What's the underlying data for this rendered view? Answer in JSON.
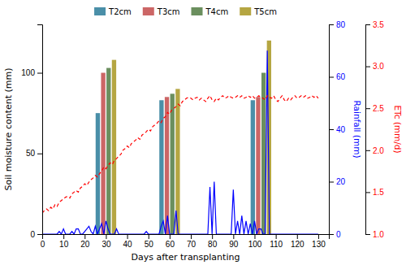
{
  "chart_data": {
    "type": "bar",
    "xlabel": "Days after transplanting",
    "ylabel": "Soil moisture content (mm)",
    "y2label": "Rainfall (mm)",
    "y3label": "ETc (mm/d)",
    "xlim": [
      0,
      135
    ],
    "xticks": [
      0,
      10,
      20,
      30,
      40,
      50,
      60,
      70,
      80,
      90,
      100,
      110,
      120,
      130
    ],
    "ylim": [
      0,
      130
    ],
    "yticks": [
      0,
      50,
      100
    ],
    "y2lim": [
      0,
      80
    ],
    "y2ticks": [
      0,
      20,
      40,
      60,
      80
    ],
    "y3lim": [
      1.0,
      3.5
    ],
    "y3ticks": [
      {
        "value": 1.0,
        "label": "1.0"
      },
      1.5,
      {
        "value": 2.0,
        "label": "2.0"
      },
      2.5,
      {
        "value": 3.0,
        "label": "3.0"
      },
      3.5
    ],
    "grid": false,
    "legend": "top",
    "series": [
      {
        "name": "T2cm",
        "type": "bar",
        "color": "#4a8fa8",
        "x": [
          30,
          60,
          103
        ],
        "values": [
          75,
          83,
          83
        ]
      },
      {
        "name": "T3cm",
        "type": "bar",
        "color": "#cc6666",
        "x": [
          30,
          60,
          103
        ],
        "values": [
          100,
          85,
          85
        ]
      },
      {
        "name": "T4cm",
        "type": "bar",
        "color": "#6b8f5e",
        "x": [
          30,
          60,
          103
        ],
        "values": [
          103,
          87,
          100
        ]
      },
      {
        "name": "T5cm",
        "type": "bar",
        "color": "#b5a642",
        "x": [
          30,
          60,
          103
        ],
        "values": [
          108,
          90,
          120
        ]
      },
      {
        "type": "line",
        "axis": "y2",
        "color": "blue",
        "line_style": "solid",
        "x": [
          0,
          1,
          2,
          3,
          4,
          5,
          6,
          7,
          8,
          9,
          10,
          11,
          12,
          13,
          14,
          15,
          16,
          17,
          18,
          19,
          20,
          21,
          22,
          23,
          24,
          25,
          26,
          27,
          28,
          29,
          30,
          31,
          32,
          33,
          34,
          35,
          36,
          37,
          38,
          39,
          40,
          41,
          42,
          43,
          44,
          45,
          46,
          47,
          48,
          49,
          50,
          51,
          52,
          53,
          54,
          55,
          56,
          57,
          58,
          59,
          60,
          61,
          62,
          63,
          64,
          65,
          66,
          67,
          68,
          69,
          70,
          71,
          72,
          73,
          74,
          75,
          76,
          77,
          78,
          79,
          80,
          81,
          82,
          83,
          84,
          85,
          86,
          87,
          88,
          89,
          90,
          91,
          92,
          93,
          94,
          95,
          96,
          97,
          98,
          99,
          100,
          101,
          102,
          103,
          104,
          105,
          106,
          107,
          108,
          109,
          110,
          111,
          112,
          113,
          114,
          115,
          116,
          117,
          118,
          119,
          120,
          121,
          122,
          123,
          124,
          125,
          126,
          127,
          128,
          129,
          130
        ],
        "values": [
          0,
          0,
          0,
          0,
          0,
          0,
          0,
          0,
          1,
          0,
          2,
          0,
          0,
          0,
          1,
          0,
          2,
          2,
          0,
          0,
          1,
          2,
          3,
          1,
          0,
          3,
          0,
          2,
          4,
          0,
          5,
          2,
          0,
          0,
          0,
          2,
          0,
          0,
          0,
          0,
          0,
          0,
          0,
          0,
          0,
          0,
          0,
          0,
          0,
          1,
          0,
          0,
          0,
          0,
          0,
          0,
          3,
          5,
          0,
          7,
          0,
          0,
          0,
          9,
          0,
          0,
          0,
          0,
          0,
          0,
          0,
          0,
          0,
          0,
          0,
          0,
          0,
          0,
          0,
          18,
          0,
          20,
          0,
          0,
          0,
          0,
          0,
          0,
          0,
          0,
          17,
          0,
          5,
          0,
          7,
          0,
          5,
          0,
          4,
          0,
          5,
          0,
          2,
          2,
          0,
          0,
          70,
          0,
          0,
          0,
          0,
          0,
          0,
          0,
          0,
          0,
          0,
          0,
          0,
          0,
          0,
          0,
          0,
          0,
          0,
          0,
          0,
          0,
          0,
          0,
          0
        ]
      },
      {
        "type": "line",
        "axis": "y3",
        "color": "red",
        "line_style": "dashed",
        "x": [
          0,
          1,
          2,
          3,
          4,
          5,
          6,
          7,
          8,
          9,
          10,
          11,
          12,
          13,
          14,
          15,
          16,
          17,
          18,
          19,
          20,
          21,
          22,
          23,
          24,
          25,
          26,
          27,
          28,
          29,
          30,
          31,
          32,
          33,
          34,
          35,
          36,
          37,
          38,
          39,
          40,
          41,
          42,
          43,
          44,
          45,
          46,
          47,
          48,
          49,
          50,
          51,
          52,
          53,
          54,
          55,
          56,
          57,
          58,
          59,
          60,
          61,
          62,
          63,
          64,
          65,
          66,
          67,
          68,
          69,
          70,
          71,
          72,
          73,
          74,
          75,
          76,
          77,
          78,
          79,
          80,
          81,
          82,
          83,
          84,
          85,
          86,
          87,
          88,
          89,
          90,
          91,
          92,
          93,
          94,
          95,
          96,
          97,
          98,
          99,
          100,
          101,
          102,
          103,
          104,
          105,
          106,
          107,
          108,
          109,
          110,
          111,
          112,
          113,
          114,
          115,
          116,
          117,
          118,
          119,
          120,
          121,
          122,
          123,
          124,
          125,
          126,
          127,
          128,
          129,
          130
        ],
        "values": [
          1.25,
          1.28,
          1.3,
          1.28,
          1.32,
          1.3,
          1.35,
          1.33,
          1.38,
          1.4,
          1.42,
          1.44,
          1.45,
          1.43,
          1.48,
          1.5,
          1.52,
          1.5,
          1.55,
          1.57,
          1.6,
          1.58,
          1.62,
          1.65,
          1.67,
          1.7,
          1.68,
          1.72,
          1.75,
          1.8,
          1.78,
          1.82,
          1.85,
          1.83,
          1.88,
          1.9,
          1.93,
          1.95,
          2.0,
          2.02,
          2.05,
          2.03,
          2.08,
          2.1,
          2.12,
          2.15,
          2.13,
          2.18,
          2.2,
          2.22,
          2.25,
          2.23,
          2.28,
          2.3,
          2.32,
          2.35,
          2.33,
          2.38,
          2.4,
          2.45,
          2.43,
          2.48,
          2.5,
          2.52,
          2.55,
          2.53,
          2.58,
          2.6,
          2.62,
          2.63,
          2.62,
          2.6,
          2.62,
          2.63,
          2.6,
          2.62,
          2.6,
          2.58,
          2.62,
          2.65,
          2.6,
          2.58,
          2.62,
          2.6,
          2.63,
          2.65,
          2.62,
          2.63,
          2.65,
          2.63,
          2.62,
          2.63,
          2.65,
          2.63,
          2.65,
          2.62,
          2.63,
          2.65,
          2.63,
          2.65,
          2.62,
          2.63,
          2.65,
          2.63,
          2.62,
          2.6,
          2.65,
          2.63,
          2.62,
          2.65,
          2.6,
          2.58,
          2.62,
          2.65,
          2.6,
          2.58,
          2.62,
          2.6,
          2.63,
          2.65,
          2.62,
          2.63,
          2.65,
          2.63,
          2.65,
          2.62,
          2.63,
          2.65,
          2.63,
          2.65,
          2.62
        ]
      }
    ]
  }
}
